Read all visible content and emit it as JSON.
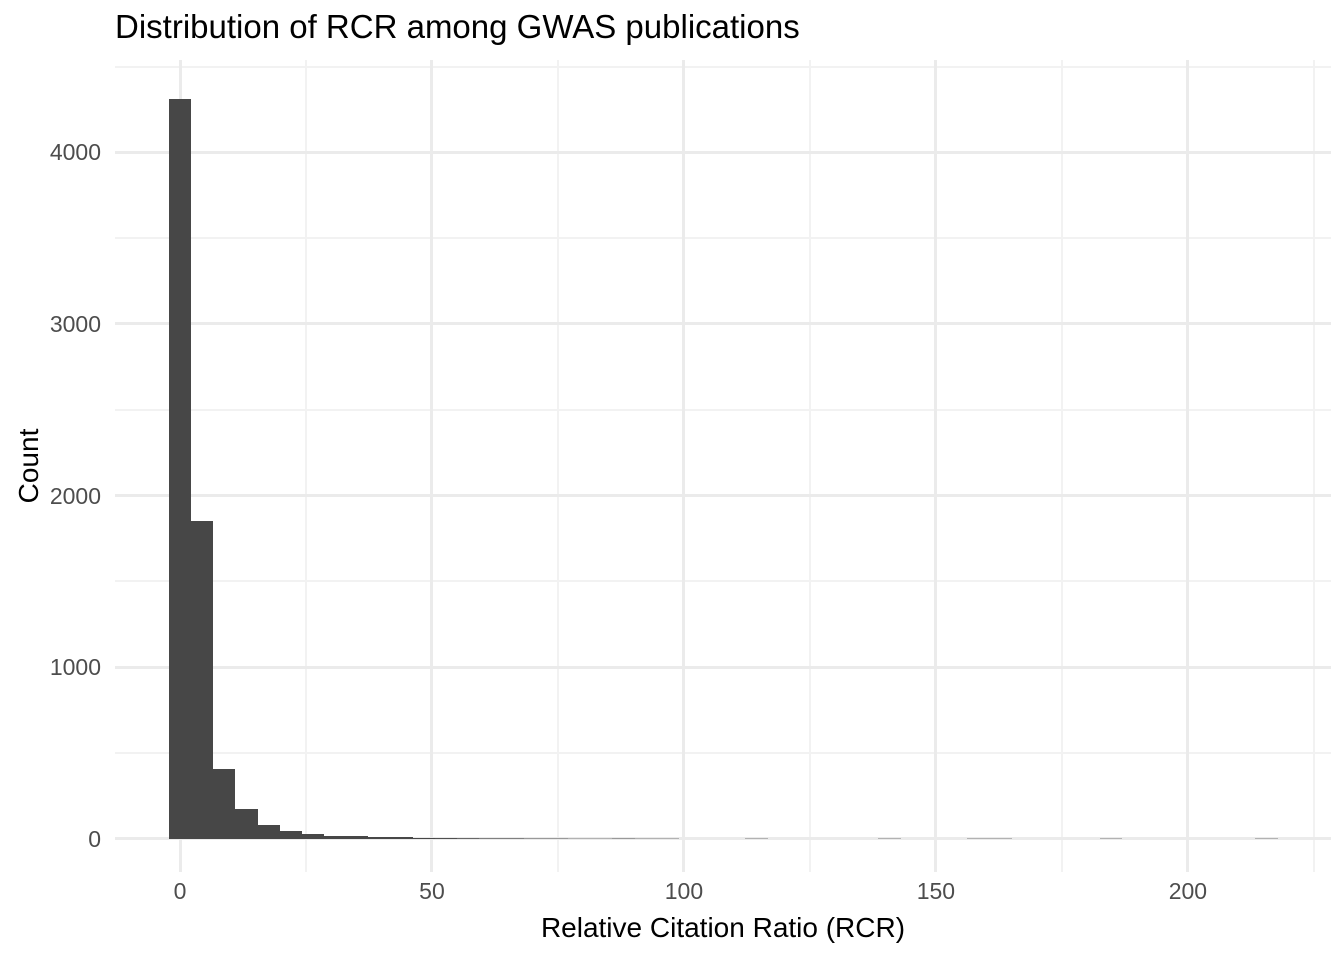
{
  "chart_data": {
    "type": "bar",
    "subtype": "histogram",
    "title": "Distribution of RCR among GWAS publications",
    "xlabel": "Relative Citation Ratio (RCR)",
    "ylabel": "Count",
    "xlim": [
      -12.9,
      228.4
    ],
    "ylim": [
      -195,
      4539
    ],
    "x_major_ticks": [
      0,
      50,
      100,
      150,
      200
    ],
    "x_minor_gridlines": [
      25,
      75,
      125,
      175,
      225
    ],
    "y_major_ticks": [
      0,
      1000,
      2000,
      3000,
      4000
    ],
    "y_minor_gridlines": [
      500,
      1500,
      2500,
      3500,
      4500
    ],
    "grid": true,
    "legend": "none",
    "bin_width": 4.4,
    "bins": [
      {
        "center": 0,
        "count": 4310
      },
      {
        "center": 4.4,
        "count": 1850
      },
      {
        "center": 8.8,
        "count": 405
      },
      {
        "center": 13.2,
        "count": 170
      },
      {
        "center": 17.6,
        "count": 80
      },
      {
        "center": 22,
        "count": 44
      },
      {
        "center": 26.4,
        "count": 26
      },
      {
        "center": 30.8,
        "count": 16
      },
      {
        "center": 35.2,
        "count": 14
      },
      {
        "center": 39.6,
        "count": 11
      },
      {
        "center": 44,
        "count": 9
      },
      {
        "center": 48.4,
        "count": 6
      },
      {
        "center": 52.8,
        "count": 5
      },
      {
        "center": 57.2,
        "count": 4
      },
      {
        "center": 61.6,
        "count": 3
      },
      {
        "center": 66,
        "count": 3
      },
      {
        "center": 70.4,
        "count": 2
      },
      {
        "center": 74.8,
        "count": 2
      },
      {
        "center": 79.2,
        "count": 1
      },
      {
        "center": 83.6,
        "count": 1
      },
      {
        "center": 88,
        "count": 2
      },
      {
        "center": 92.4,
        "count": 1
      },
      {
        "center": 96.8,
        "count": 1
      },
      {
        "center": 114.4,
        "count": 1
      },
      {
        "center": 140.8,
        "count": 1
      },
      {
        "center": 158.4,
        "count": 1
      },
      {
        "center": 162.8,
        "count": 1
      },
      {
        "center": 184.8,
        "count": 1
      },
      {
        "center": 215.6,
        "count": 1
      }
    ],
    "colors": {
      "bar": "#474747",
      "grid_major": "#ebebeb",
      "grid_minor": "#f2f2f2",
      "tick_label": "#4d4d4d",
      "title": "#000000",
      "axis_title": "#000000",
      "background": "#ffffff"
    }
  }
}
